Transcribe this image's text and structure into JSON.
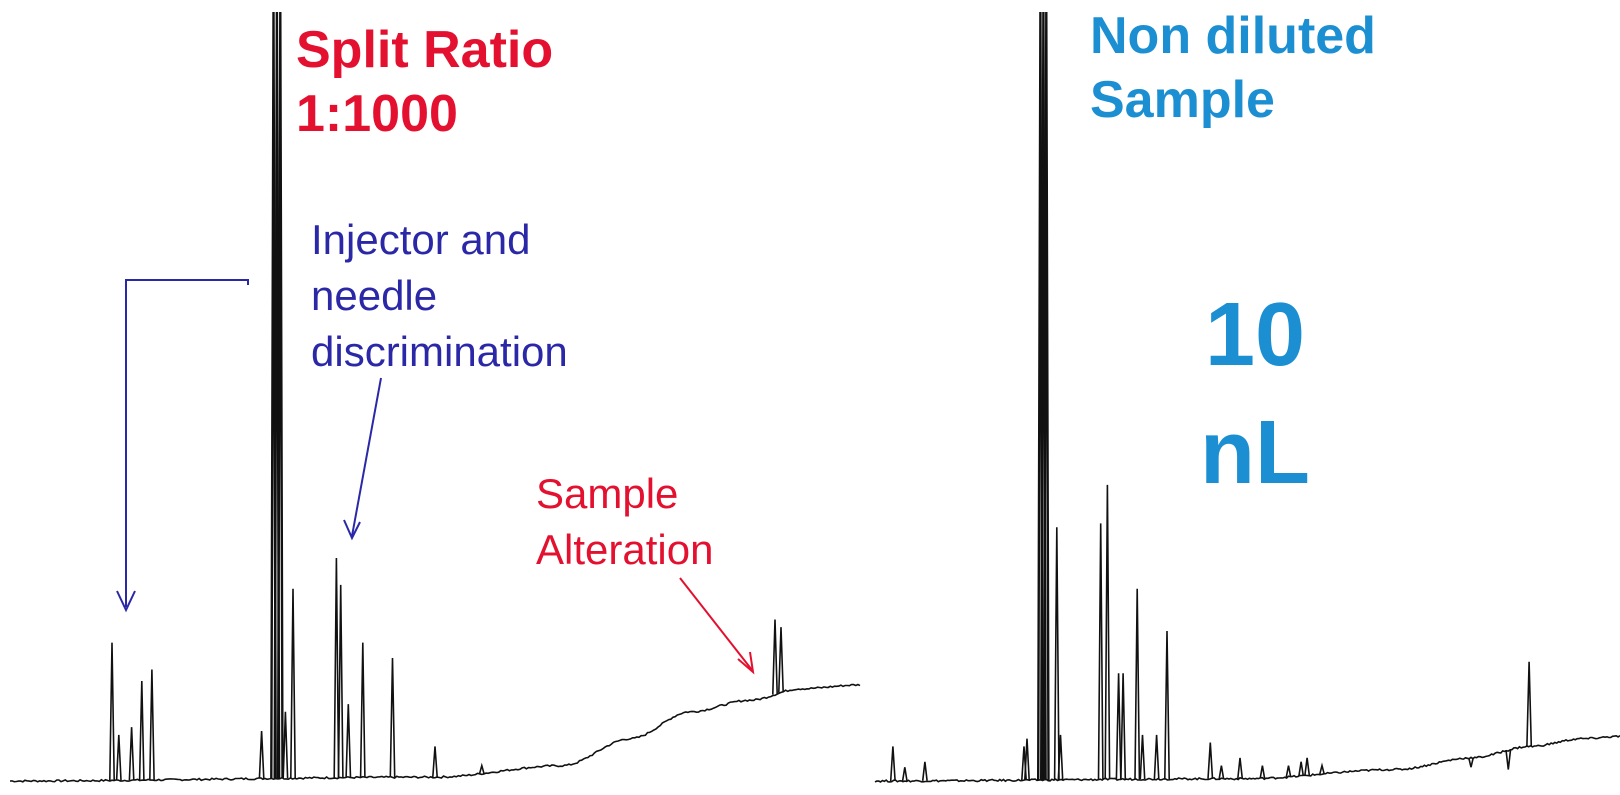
{
  "panels": {
    "left": {
      "title_line1": "Split Ratio",
      "title_line2": "1:1000",
      "annotation_blue": [
        "Injector and",
        "needle",
        "discrimination"
      ],
      "annotation_red": [
        "Sample",
        "Alteration"
      ]
    },
    "right": {
      "title_line1": "Non diluted",
      "title_line2": "Sample",
      "volume_line1": "10",
      "volume_line2": "nL"
    }
  },
  "colors": {
    "trace": "#111111",
    "split_title": "#e3102f",
    "sample_title": "#1b8fd2",
    "annotation_blue": "#2b28a8",
    "annotation_red": "#e3102f"
  },
  "chart_data": [
    {
      "type": "line",
      "title": "Split Ratio 1:1000",
      "xlabel": "",
      "ylabel": "",
      "grid": false,
      "xlim": [
        0,
        100
      ],
      "ylim": [
        0,
        100
      ],
      "baseline": [
        [
          0,
          0
        ],
        [
          50,
          0.5
        ],
        [
          65,
          2
        ],
        [
          73,
          5.5
        ],
        [
          80,
          9
        ],
        [
          87,
          10.5
        ],
        [
          93,
          12
        ],
        [
          100,
          12.5
        ]
      ],
      "peaks": [
        {
          "x": 12.0,
          "y": 18
        },
        {
          "x": 12.8,
          "y": 6
        },
        {
          "x": 14.3,
          "y": 7
        },
        {
          "x": 15.5,
          "y": 13
        },
        {
          "x": 16.7,
          "y": 14.5
        },
        {
          "x": 29.6,
          "y": 6.5
        },
        {
          "x": 31.0,
          "y": 100
        },
        {
          "x": 31.4,
          "y": 100
        },
        {
          "x": 31.8,
          "y": 100
        },
        {
          "x": 32.4,
          "y": 9
        },
        {
          "x": 33.3,
          "y": 25
        },
        {
          "x": 38.4,
          "y": 29
        },
        {
          "x": 38.9,
          "y": 25.5
        },
        {
          "x": 39.8,
          "y": 10
        },
        {
          "x": 41.5,
          "y": 18
        },
        {
          "x": 45.0,
          "y": 16
        },
        {
          "x": 50.0,
          "y": 4.5
        },
        {
          "x": 55.5,
          "y": 2
        },
        {
          "x": 90.0,
          "y": 21
        },
        {
          "x": 90.7,
          "y": 20
        }
      ],
      "annotations": [
        "Injector and needle discrimination",
        "Sample Alteration"
      ]
    },
    {
      "type": "line",
      "title": "Non diluted Sample",
      "xlabel": "",
      "ylabel": "",
      "grid": false,
      "xlim": [
        0,
        100
      ],
      "ylim": [
        0,
        100
      ],
      "baseline": [
        [
          0,
          0
        ],
        [
          50,
          0.3
        ],
        [
          70,
          1.5
        ],
        [
          80,
          3
        ],
        [
          88,
          4.5
        ],
        [
          95,
          5.5
        ],
        [
          100,
          5.8
        ]
      ],
      "peaks": [
        {
          "x": 2.4,
          "y": 4.5
        },
        {
          "x": 4.0,
          "y": 1.8
        },
        {
          "x": 6.7,
          "y": 2.5
        },
        {
          "x": 20.0,
          "y": 4.5
        },
        {
          "x": 20.4,
          "y": 5.5
        },
        {
          "x": 22.2,
          "y": 100
        },
        {
          "x": 22.6,
          "y": 100
        },
        {
          "x": 23.0,
          "y": 100
        },
        {
          "x": 24.4,
          "y": 33
        },
        {
          "x": 24.9,
          "y": 6
        },
        {
          "x": 30.3,
          "y": 33.5
        },
        {
          "x": 31.2,
          "y": 38.5
        },
        {
          "x": 32.7,
          "y": 14
        },
        {
          "x": 33.3,
          "y": 14
        },
        {
          "x": 35.2,
          "y": 25
        },
        {
          "x": 35.9,
          "y": 6
        },
        {
          "x": 37.8,
          "y": 6
        },
        {
          "x": 39.2,
          "y": 19.5
        },
        {
          "x": 45.0,
          "y": 5
        },
        {
          "x": 46.5,
          "y": 2
        },
        {
          "x": 49.0,
          "y": 3
        },
        {
          "x": 52.0,
          "y": 2
        },
        {
          "x": 55.5,
          "y": 2
        },
        {
          "x": 57.2,
          "y": 2.5
        },
        {
          "x": 58.0,
          "y": 3
        },
        {
          "x": 60.0,
          "y": 2
        },
        {
          "x": 80.0,
          "y": 1.8
        },
        {
          "x": 85.0,
          "y": 1.5
        },
        {
          "x": 87.8,
          "y": 15.5
        }
      ]
    }
  ]
}
